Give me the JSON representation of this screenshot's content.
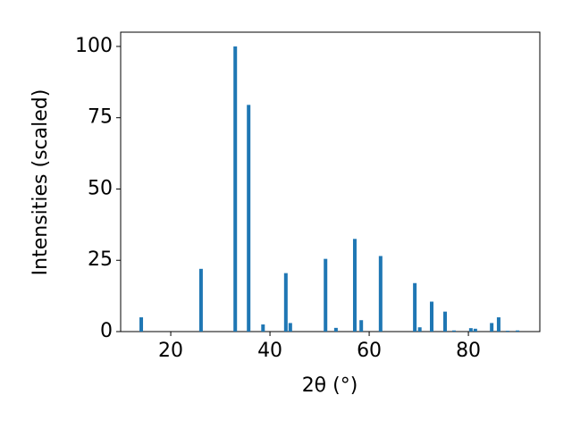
{
  "chart_data": {
    "type": "bar",
    "xlabel": "2θ (°)",
    "ylabel": "Intensities (scaled)",
    "x": [
      14.05,
      26.1,
      33.0,
      35.7,
      38.6,
      43.2,
      44.1,
      51.2,
      53.3,
      57.1,
      58.4,
      62.3,
      69.2,
      70.2,
      72.6,
      75.3,
      77.1,
      80.5,
      81.4,
      84.7,
      86.1,
      87.9,
      89.9
    ],
    "values": [
      5,
      22,
      100,
      79.5,
      2.5,
      20.5,
      3,
      25.5,
      1.3,
      32.5,
      4,
      26.5,
      17,
      1.5,
      10.5,
      7,
      0.4,
      1.2,
      1,
      3,
      5,
      0.3,
      0.4
    ],
    "color": "#1f77b4",
    "xlim": [
      9.9,
      94.4
    ],
    "xticks": [
      20,
      40,
      60,
      80
    ],
    "ylim": [
      0,
      105
    ],
    "yticks": [
      0,
      25,
      50,
      75,
      100
    ],
    "grid": false
  }
}
